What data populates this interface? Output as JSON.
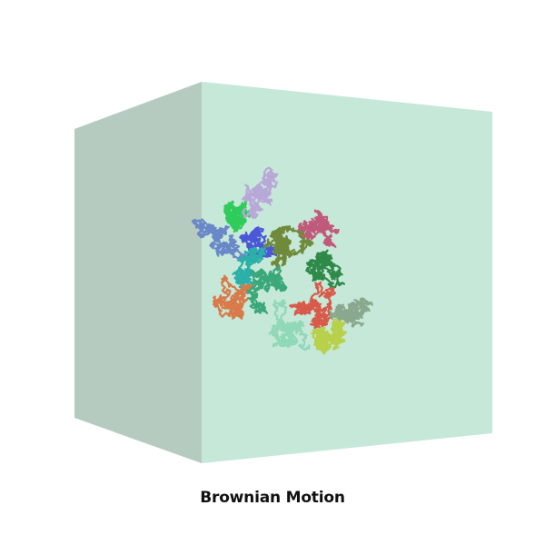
{
  "caption": "Brownian Motion",
  "colors": {
    "background": "#ffffff",
    "cube_front": "#c6e8d8",
    "cube_side": "#b5cbc0"
  },
  "walks": [
    {
      "name": "walk-green-bright",
      "color": "#2ecc5a",
      "seed": 11
    },
    {
      "name": "walk-blue",
      "color": "#4a58d8",
      "seed": 23
    },
    {
      "name": "walk-magenta",
      "color": "#c05a7a",
      "seed": 37
    },
    {
      "name": "walk-dark-green",
      "color": "#2f8a4a",
      "seed": 41
    },
    {
      "name": "walk-teal",
      "color": "#2ab0a8",
      "seed": 53
    },
    {
      "name": "walk-olive",
      "color": "#6e8a3a",
      "seed": 67
    },
    {
      "name": "walk-orange",
      "color": "#d87a4a",
      "seed": 71
    },
    {
      "name": "walk-yellow-green",
      "color": "#b8d04a",
      "seed": 83
    },
    {
      "name": "walk-grey-green",
      "color": "#8aa88e",
      "seed": 97
    },
    {
      "name": "walk-lavender",
      "color": "#b8a8d8",
      "seed": 101
    },
    {
      "name": "walk-steel-blue",
      "color": "#6a88c8",
      "seed": 113
    },
    {
      "name": "walk-mint",
      "color": "#8fd8b8",
      "seed": 127
    },
    {
      "name": "walk-red",
      "color": "#d85a4a",
      "seed": 131
    },
    {
      "name": "walk-sea-green",
      "color": "#3aa878",
      "seed": 139
    }
  ]
}
